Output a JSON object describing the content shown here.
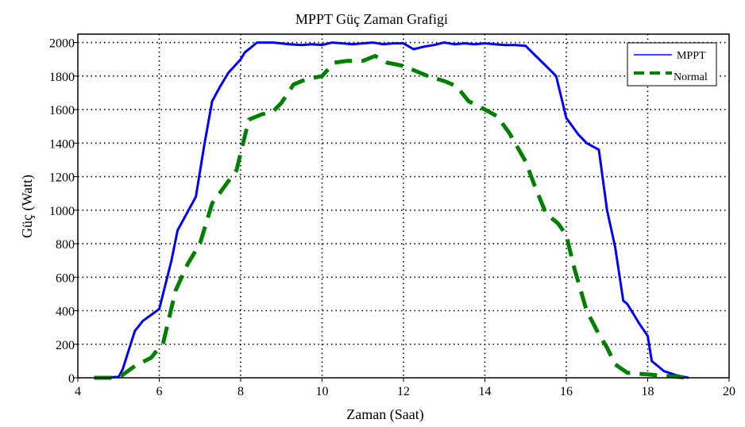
{
  "chart_data": {
    "type": "line",
    "title": "MPPT Güç Zaman Grafigi",
    "xlabel": "Zaman (Saat)",
    "ylabel": "Güç (Watt)",
    "xlim": [
      4,
      20
    ],
    "ylim": [
      0,
      2050
    ],
    "xticks": [
      4,
      6,
      8,
      10,
      12,
      14,
      16,
      18,
      20
    ],
    "yticks": [
      0,
      200,
      400,
      600,
      800,
      1000,
      1200,
      1400,
      1600,
      1800,
      2000
    ],
    "grid": true,
    "legend_position": "top-right",
    "series": [
      {
        "name": "MPPT",
        "color": "#0000ff",
        "style": "solid",
        "x": [
          4.4,
          5.0,
          5.1,
          5.4,
          5.6,
          6.0,
          6.3,
          6.45,
          6.9,
          7.1,
          7.3,
          7.5,
          7.7,
          8.0,
          8.1,
          8.4,
          8.8,
          9.2,
          9.5,
          9.75,
          10.0,
          10.25,
          10.5,
          10.75,
          11.0,
          11.25,
          11.5,
          11.75,
          12.0,
          12.25,
          12.5,
          12.75,
          13.0,
          13.25,
          13.5,
          13.75,
          14.0,
          14.25,
          14.5,
          14.75,
          15.0,
          15.25,
          15.5,
          15.75,
          16.0,
          16.3,
          16.5,
          16.8,
          17.0,
          17.2,
          17.4,
          17.5,
          17.8,
          18.0,
          18.1,
          18.4,
          18.7,
          19.0
        ],
        "y": [
          0,
          5,
          50,
          280,
          340,
          410,
          700,
          880,
          1080,
          1380,
          1650,
          1740,
          1820,
          1900,
          1940,
          2000,
          2000,
          1990,
          1985,
          1990,
          1985,
          2000,
          1995,
          1990,
          1995,
          2000,
          1990,
          1995,
          1995,
          1960,
          1975,
          1985,
          2000,
          1990,
          1995,
          1990,
          1995,
          1990,
          1985,
          1985,
          1980,
          1920,
          1860,
          1800,
          1550,
          1450,
          1400,
          1360,
          1000,
          780,
          460,
          440,
          320,
          250,
          100,
          40,
          15,
          0
        ]
      },
      {
        "name": "Normal",
        "color": "#008000",
        "style": "dashed",
        "x": [
          4.4,
          5.0,
          5.4,
          5.8,
          6.1,
          6.4,
          6.7,
          7.0,
          7.3,
          7.6,
          7.9,
          8.2,
          8.5,
          8.8,
          9.0,
          9.3,
          9.6,
          10.0,
          10.3,
          10.6,
          11.0,
          11.3,
          11.6,
          12.0,
          12.3,
          12.6,
          13.0,
          13.3,
          13.6,
          14.0,
          14.3,
          14.6,
          15.0,
          15.2,
          15.5,
          15.8,
          16.0,
          16.2,
          16.5,
          16.8,
          17.0,
          17.2,
          17.5,
          18.0,
          18.5,
          19.0
        ],
        "y": [
          0,
          0,
          70,
          120,
          210,
          520,
          680,
          800,
          1040,
          1140,
          1240,
          1540,
          1570,
          1590,
          1640,
          1750,
          1780,
          1800,
          1880,
          1890,
          1890,
          1920,
          1880,
          1860,
          1830,
          1800,
          1770,
          1740,
          1650,
          1600,
          1560,
          1460,
          1290,
          1160,
          980,
          920,
          850,
          650,
          400,
          260,
          180,
          80,
          30,
          20,
          10,
          0
        ]
      }
    ]
  }
}
